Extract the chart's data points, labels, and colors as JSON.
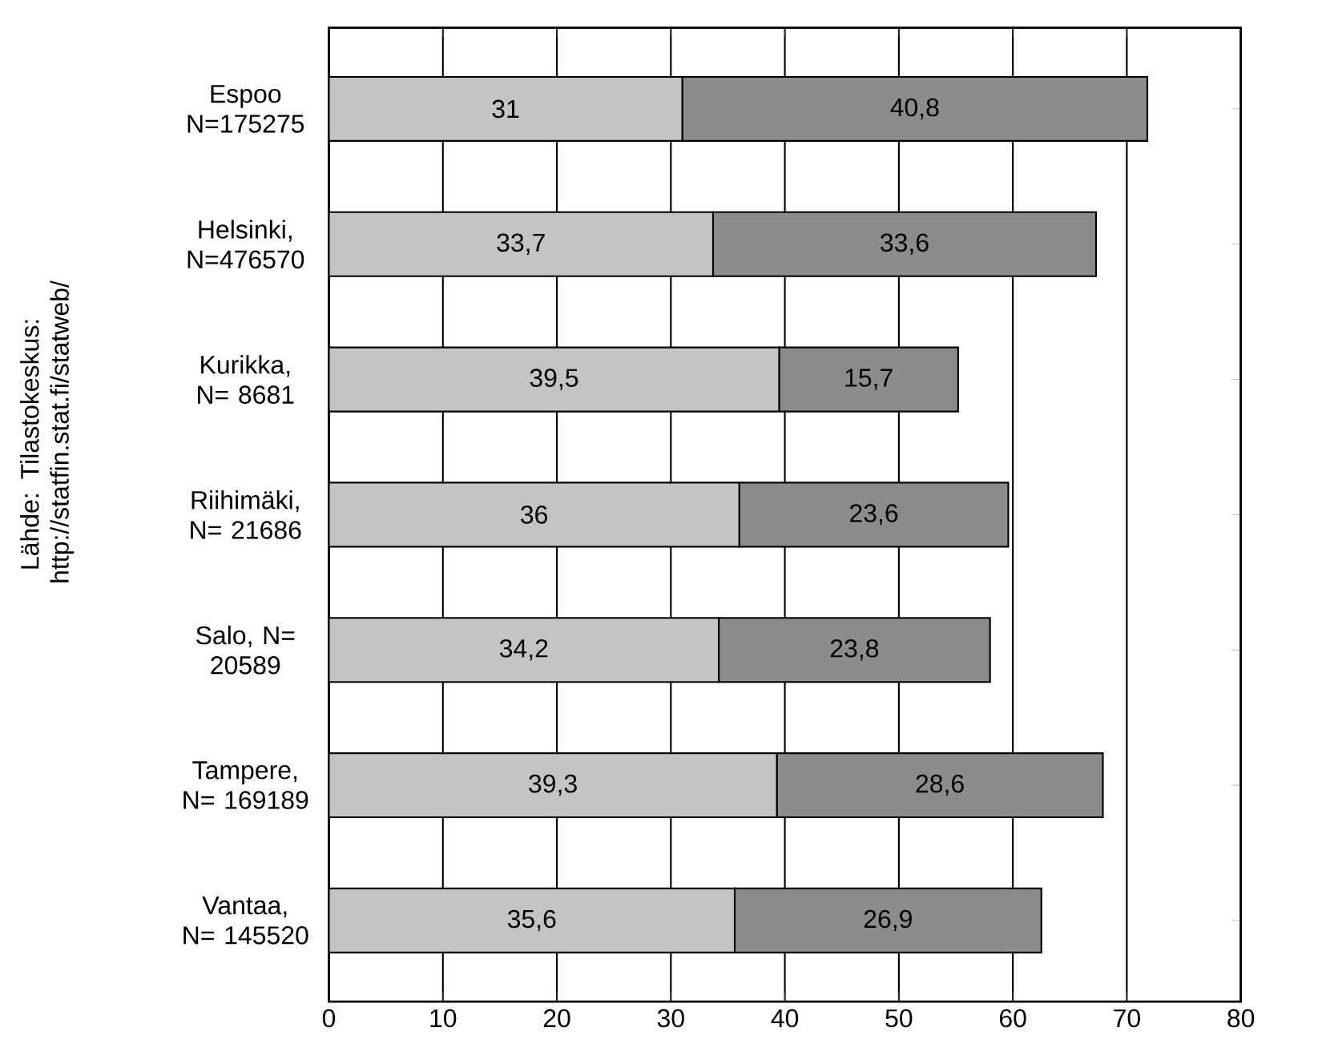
{
  "chart_data": {
    "type": "bar",
    "orientation": "horizontal",
    "stacked": true,
    "categories": [
      "Espoo N=175275",
      "Helsinki, N=476570",
      "Kurikka, N= 8681",
      "Riihimäki, N= 21686",
      "Salo, N= 20589",
      "Tampere, N= 169189",
      "Vantaa, N= 145520"
    ],
    "series": [
      {
        "color": "#c4c4c4",
        "values": [
          31,
          33.7,
          39.5,
          36,
          34.2,
          39.3,
          35.6
        ],
        "value_labels": [
          "31",
          "33,7",
          "39,5",
          "36",
          "34,2",
          "39,3",
          "35,6"
        ]
      },
      {
        "color": "#8c8c8c",
        "values": [
          40.8,
          33.6,
          15.7,
          23.6,
          23.8,
          28.6,
          26.9
        ],
        "value_labels": [
          "40,8",
          "33,6",
          "15,7",
          "23,6",
          "23,8",
          "28,6",
          "26,9"
        ]
      }
    ],
    "xlim": [
      0,
      80
    ],
    "xticks": [
      0,
      10,
      20,
      30,
      40,
      50,
      60,
      70,
      80
    ],
    "grid": "x",
    "annotations": [
      "Lähde: Tilastokeskus: http://statfin.stat.fi/statweb/"
    ]
  }
}
